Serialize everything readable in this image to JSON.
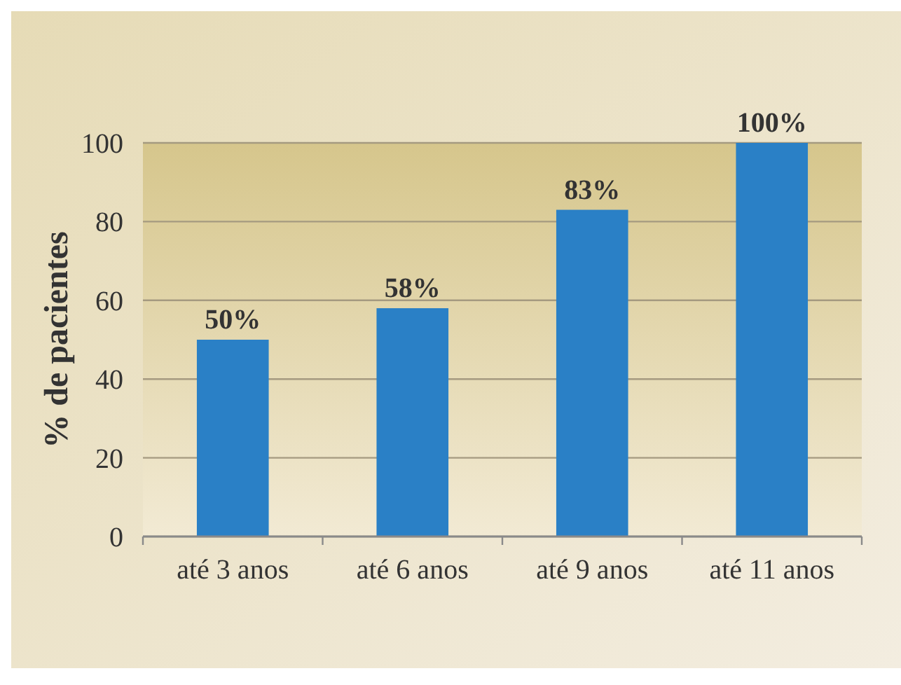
{
  "chart_data": {
    "type": "bar",
    "ylabel": "% de pacientes",
    "categories": [
      "até 3 anos",
      "até 6 anos",
      "até 9 anos",
      "até 11 anos"
    ],
    "values": [
      50,
      58,
      83,
      100
    ],
    "color": "#2a80c6",
    "value_labels": [
      "50%",
      "58%",
      "83%",
      "100%"
    ],
    "ylim": [
      0,
      100
    ],
    "yticks": [
      0,
      20,
      40,
      60,
      80,
      100
    ],
    "grid": "y"
  }
}
